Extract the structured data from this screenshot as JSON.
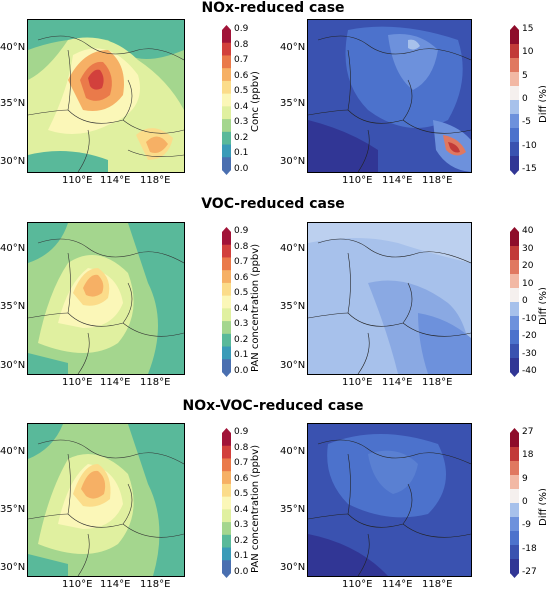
{
  "rows": [
    {
      "title": "NOx-reduced case",
      "left_cbar": {
        "label": "Conc (ppbv)",
        "ticks": [
          "0.9",
          "0.8",
          "0.7",
          "0.6",
          "0.5",
          "0.4",
          "0.3",
          "0.2",
          "0.1",
          "0.0"
        ]
      },
      "right_cbar": {
        "label": "Diff (%)",
        "ticks": [
          "15",
          "10",
          "5",
          "0",
          "-5",
          "-10",
          "-15"
        ]
      }
    },
    {
      "title": "VOC-reduced case",
      "left_cbar": {
        "label": "PAN concentration (ppbv)",
        "ticks": [
          "0.9",
          "0.8",
          "0.7",
          "0.6",
          "0.5",
          "0.4",
          "0.3",
          "0.2",
          "0.1",
          "0.0"
        ]
      },
      "right_cbar": {
        "label": "Diff (%)",
        "ticks": [
          "40",
          "30",
          "20",
          "10",
          "0",
          "-10",
          "-20",
          "-30",
          "-40"
        ]
      }
    },
    {
      "title": "NOx-VOC-reduced case",
      "left_cbar": {
        "label": "PAN concentration (ppbv)",
        "ticks": [
          "0.9",
          "0.8",
          "0.7",
          "0.6",
          "0.5",
          "0.4",
          "0.3",
          "0.2",
          "0.1",
          "0.0"
        ]
      },
      "right_cbar": {
        "label": "Diff (%)",
        "ticks": [
          "27",
          "18",
          "9",
          "0",
          "-9",
          "-18",
          "-27"
        ]
      }
    }
  ],
  "axes": {
    "lat_ticks": [
      "40°N",
      "35°N",
      "30°N"
    ],
    "lon_ticks": [
      "110°E",
      "114°E",
      "118°E"
    ]
  },
  "colormaps": {
    "concentration": [
      "#4a6fb0",
      "#3a9bb8",
      "#59b99a",
      "#a4d68e",
      "#e0f0a0",
      "#fbf7b8",
      "#fbdc8a",
      "#f6b065",
      "#ea7a4a",
      "#d2403c",
      "#a11338"
    ],
    "difference": [
      "#313695",
      "#3a52b0",
      "#4c72cc",
      "#6d91dc",
      "#a7c1eb",
      "#f5f0ee",
      "#f2b8a4",
      "#e07860",
      "#c23a38",
      "#8e0c2a"
    ]
  }
}
